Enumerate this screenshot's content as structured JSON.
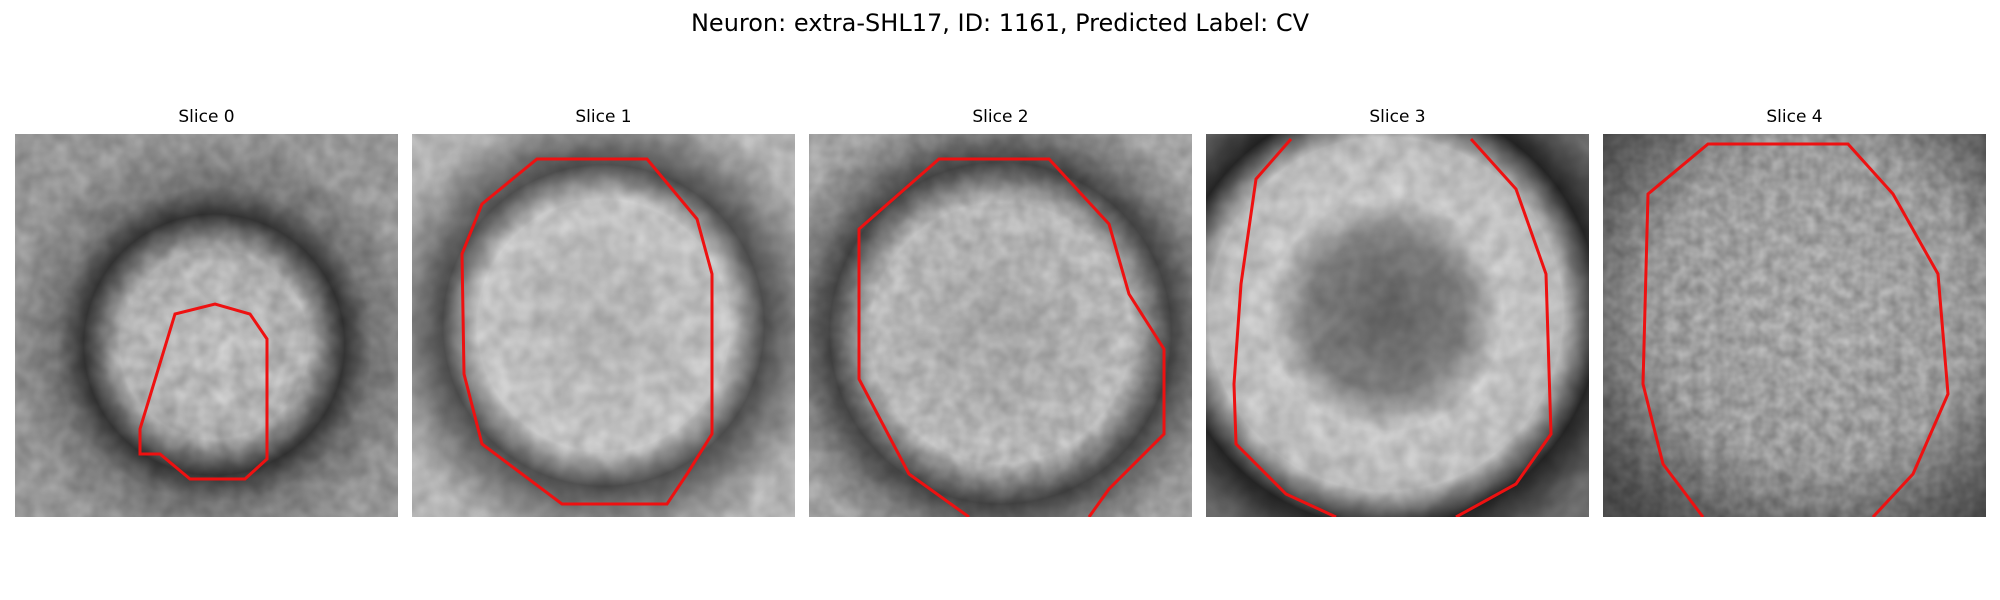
{
  "figure": {
    "title": "Neuron: extra-SHL17, ID: 1161, Predicted Label: CV"
  },
  "panels": [
    {
      "title": "Slice 0",
      "image": "grayscale microscopy crop of neuron with red contour outline"
    },
    {
      "title": "Slice 1",
      "image": "grayscale microscopy crop of neuron with red contour outline"
    },
    {
      "title": "Slice 2",
      "image": "grayscale microscopy crop of neuron with red contour outline"
    },
    {
      "title": "Slice 3",
      "image": "grayscale microscopy crop of neuron with red contour outline"
    },
    {
      "title": "Slice 4",
      "image": "grayscale microscopy crop of neuron with red contour outline"
    }
  ],
  "colors": {
    "contour": "#ee1111"
  }
}
